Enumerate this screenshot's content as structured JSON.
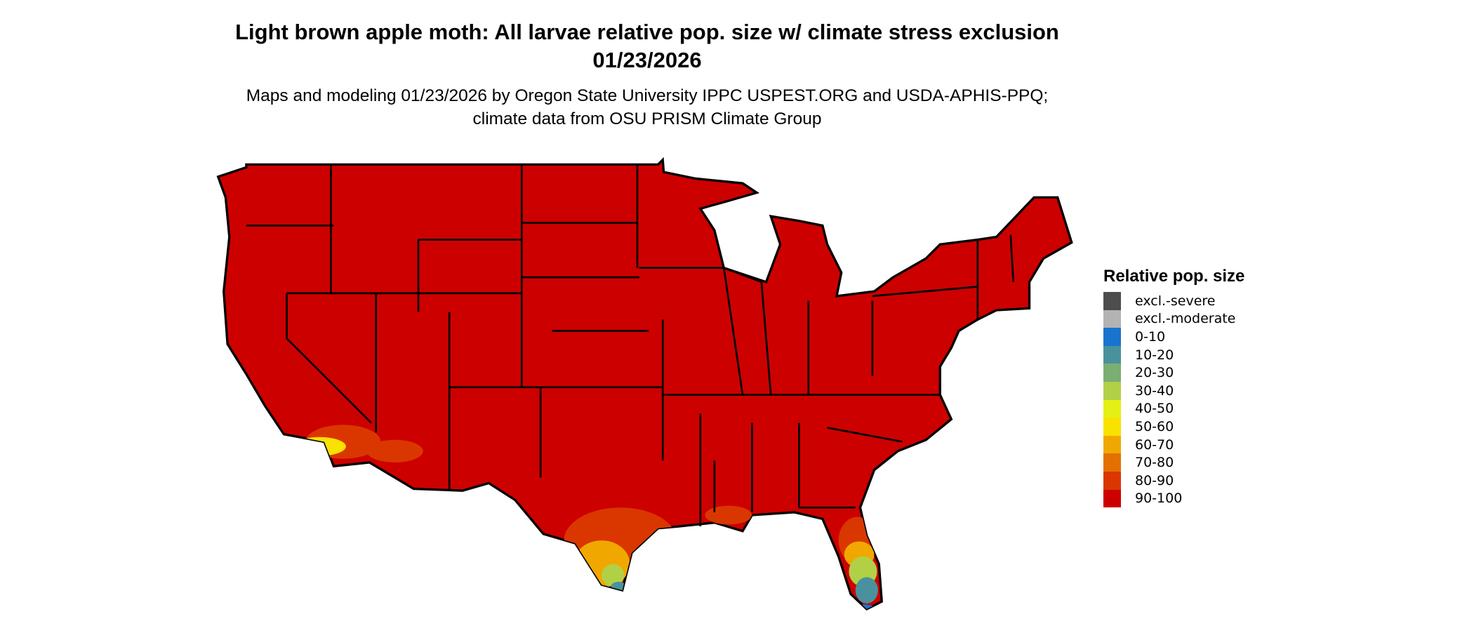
{
  "title": "Light brown apple moth: All larvae relative pop. size w/ climate stress exclusion 01/23/2026",
  "subtitle": "Maps and modeling 01/23/2026 by Oregon State University IPPC USPEST.ORG and USDA-APHIS-PPQ; climate data from OSU PRISM Climate Group",
  "map": {
    "region": "Contiguous United States",
    "dominant_class": "90-100",
    "border_color": "#000000"
  },
  "legend": {
    "title": "Relative pop. size",
    "items": [
      {
        "label": "excl.-severe",
        "color": "#4d4d4d"
      },
      {
        "label": "excl.-moderate",
        "color": "#b3b3b3"
      },
      {
        "label": "0-10",
        "color": "#1874cd"
      },
      {
        "label": "10-20",
        "color": "#4a919e"
      },
      {
        "label": "20-30",
        "color": "#7bae72"
      },
      {
        "label": "30-40",
        "color": "#b2d045"
      },
      {
        "label": "40-50",
        "color": "#e4f015"
      },
      {
        "label": "50-60",
        "color": "#f9e100"
      },
      {
        "label": "60-70",
        "color": "#f0a800"
      },
      {
        "label": "70-80",
        "color": "#e37000"
      },
      {
        "label": "80-90",
        "color": "#da3700"
      },
      {
        "label": "90-100",
        "color": "#cd0000"
      }
    ]
  }
}
